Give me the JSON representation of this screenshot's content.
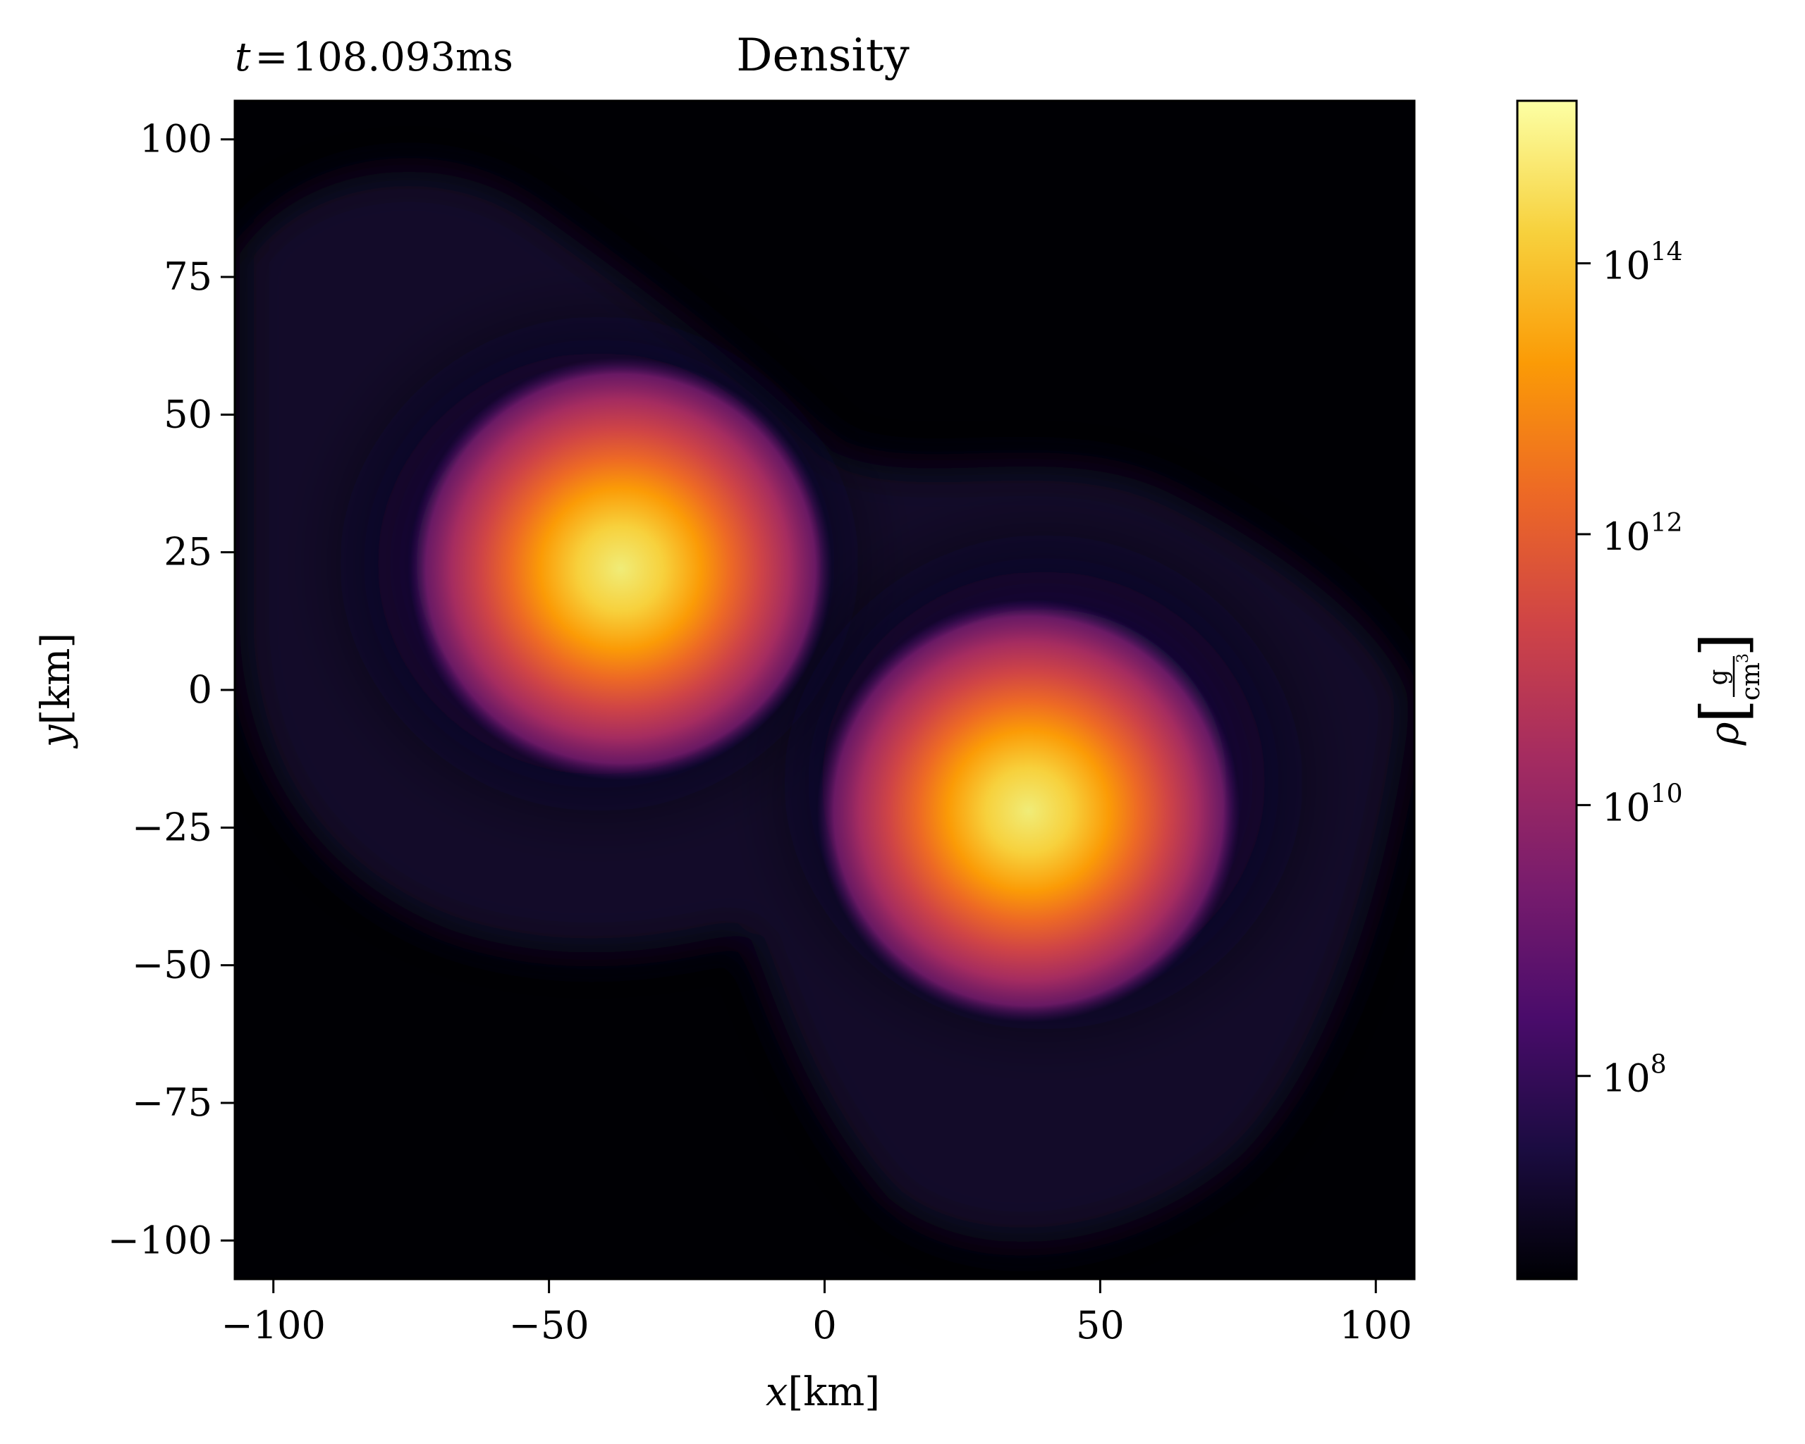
{
  "chart_data": {
    "type": "heatmap",
    "title": "Density",
    "time_label": {
      "prefix": "t",
      "equals": "=",
      "value": "108.093ms"
    },
    "xlabel": {
      "var": "x",
      "unit": "[km]"
    },
    "ylabel": {
      "var": "y",
      "unit": "[km]"
    },
    "xlim": [
      -107,
      107
    ],
    "ylim": [
      -107,
      107
    ],
    "xticks": [
      -100,
      -50,
      0,
      50,
      100
    ],
    "yticks": [
      100,
      75,
      50,
      25,
      0,
      -25,
      -50,
      -75,
      -100
    ],
    "xtick_labels": [
      "−100",
      "−50",
      "0",
      "50",
      "100"
    ],
    "ytick_labels": [
      "100",
      "75",
      "50",
      "25",
      "0",
      "−25",
      "−50",
      "−75",
      "−100"
    ],
    "colormap": "inferno",
    "colorbar": {
      "scale": "log",
      "log10_range": [
        6.5,
        15.2
      ],
      "ticks_log10": [
        8,
        10,
        12,
        14
      ],
      "tick_base": "10",
      "tick_exponents": [
        "8",
        "10",
        "12",
        "14"
      ],
      "label": {
        "symbol": "ρ",
        "numerator": "g",
        "denominator": "cm",
        "exponent": "3"
      }
    },
    "blobs": [
      {
        "name": "upper-left-core",
        "center_x_km": -37,
        "center_y_km": 22,
        "peak_log10_density": 15.0
      },
      {
        "name": "lower-right-core",
        "center_x_km": 37,
        "center_y_km": -22,
        "peak_log10_density": 15.0
      }
    ],
    "colors": {
      "background": "#000004",
      "inferno_stops": [
        "#000004",
        "#1b0c41",
        "#4a0c6b",
        "#781c6d",
        "#a52c60",
        "#cf4446",
        "#ed6925",
        "#fb9b06",
        "#f7d13d",
        "#fcffa4"
      ]
    }
  }
}
